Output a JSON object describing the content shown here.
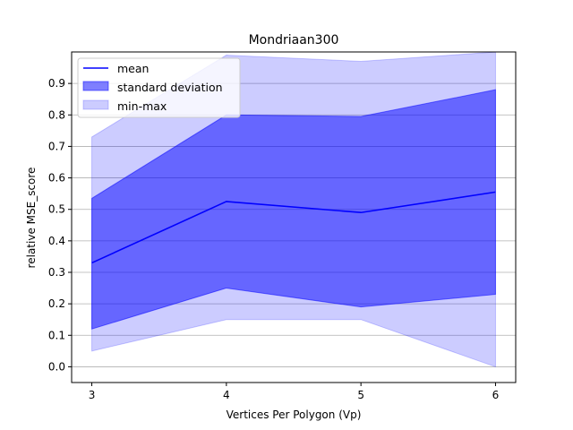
{
  "chart_data": {
    "type": "area",
    "title": "Mondriaan300",
    "xlabel": "Vertices Per Polygon (Vp)",
    "ylabel": "relative MSE_score",
    "x": [
      3,
      4,
      5,
      6
    ],
    "xticks": [
      "3",
      "4",
      "5",
      "6"
    ],
    "yticks": [
      "0.0",
      "0.1",
      "0.2",
      "0.3",
      "0.4",
      "0.5",
      "0.6",
      "0.7",
      "0.8",
      "0.9"
    ],
    "ytick_values": [
      0.0,
      0.1,
      0.2,
      0.3,
      0.4,
      0.5,
      0.6,
      0.7,
      0.8,
      0.9
    ],
    "xlim": [
      2.85,
      6.15
    ],
    "ylim": [
      -0.05,
      1.0
    ],
    "grid": "horizontal",
    "legend_position": "top-left",
    "series": [
      {
        "name": "mean",
        "kind": "line",
        "color": "#0000ff",
        "values": [
          0.33,
          0.525,
          0.49,
          0.555
        ]
      },
      {
        "name": "standard deviation",
        "kind": "band",
        "color": "#0000ff",
        "opacity": 0.5,
        "lower": [
          0.12,
          0.25,
          0.19,
          0.23
        ],
        "upper": [
          0.535,
          0.8,
          0.795,
          0.88
        ]
      },
      {
        "name": "min-max",
        "kind": "band",
        "color": "#0000ff",
        "opacity": 0.2,
        "lower": [
          0.05,
          0.15,
          0.15,
          0.0
        ],
        "upper": [
          0.73,
          0.99,
          0.97,
          1.0
        ]
      }
    ]
  }
}
